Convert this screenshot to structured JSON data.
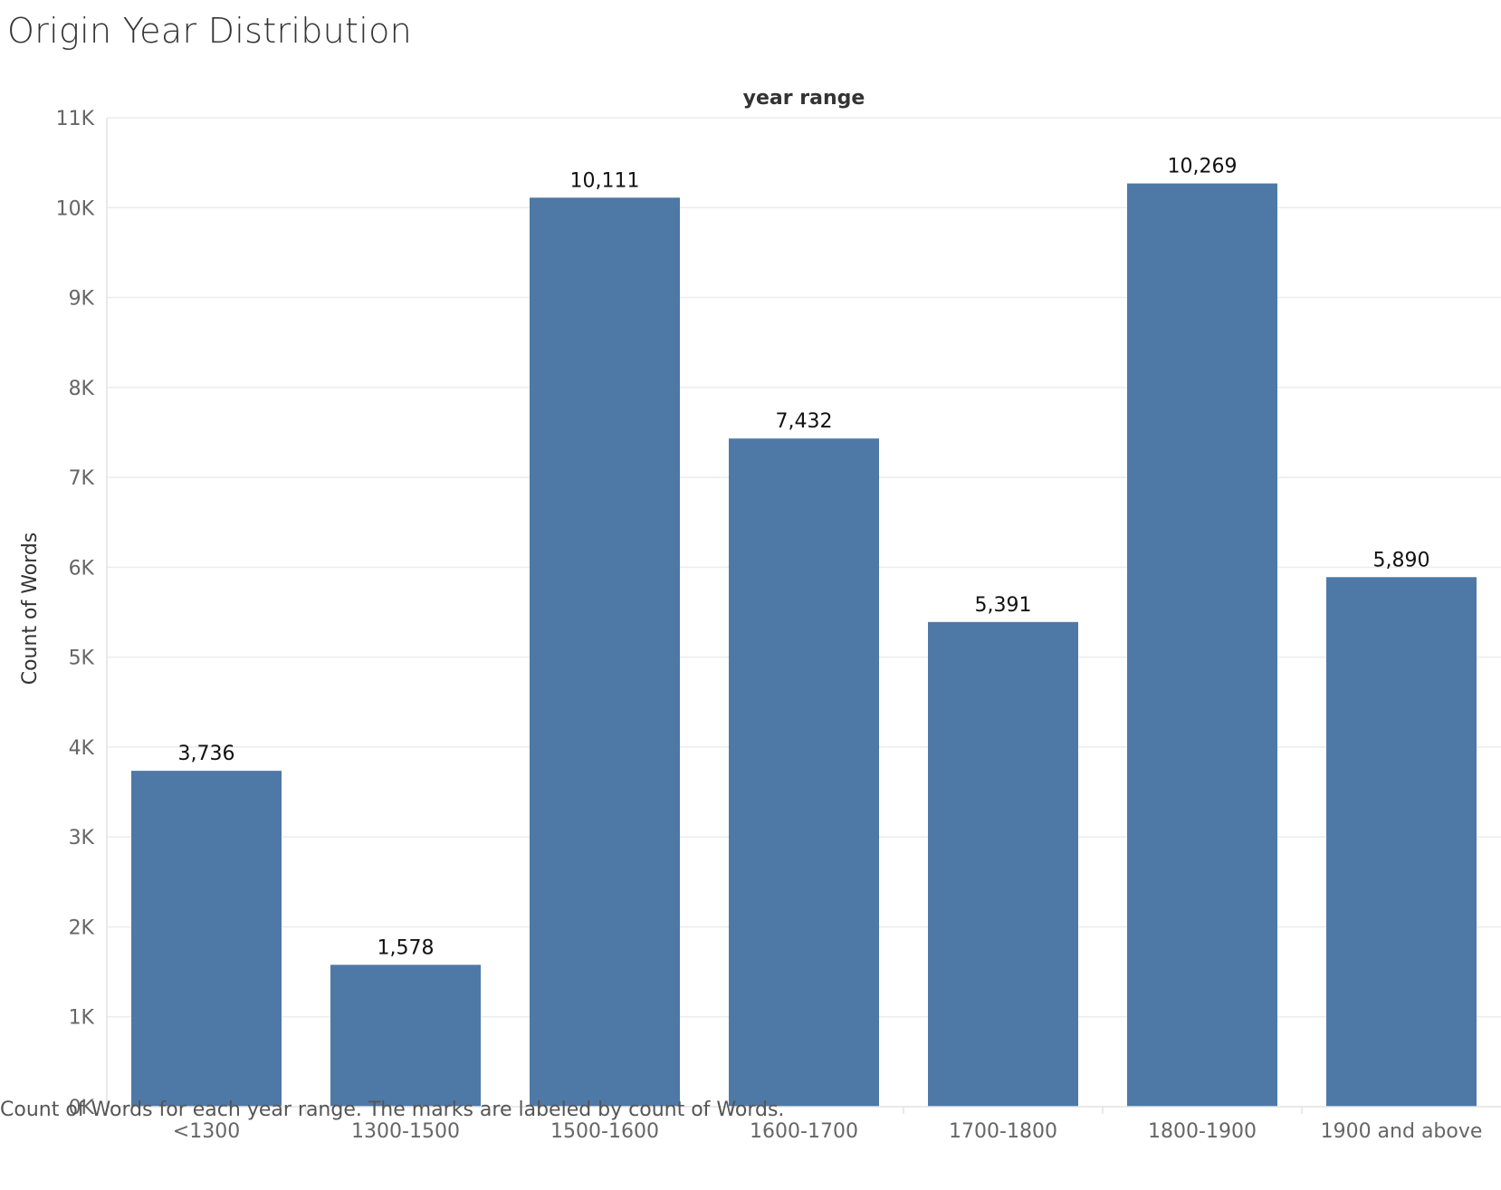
{
  "chart_data": {
    "type": "bar",
    "title": "Origin Year Distribution",
    "column_header": "year range",
    "xlabel": "",
    "ylabel": "Count of Words",
    "categories": [
      "<1300",
      "1300-1500",
      "1500-1600",
      "1600-1700",
      "1700-1800",
      "1800-1900",
      "1900 and above"
    ],
    "values": [
      3736,
      1578,
      10111,
      7432,
      5391,
      10269,
      5890
    ],
    "value_labels": [
      "3,736",
      "1,578",
      "10,111",
      "7,432",
      "5,391",
      "10,269",
      "5,890"
    ],
    "ylim": [
      0,
      11000
    ],
    "yticks": [
      0,
      1000,
      2000,
      3000,
      4000,
      5000,
      6000,
      7000,
      8000,
      9000,
      10000,
      11000
    ],
    "ytick_labels": [
      "0K",
      "1K",
      "2K",
      "3K",
      "4K",
      "5K",
      "6K",
      "7K",
      "8K",
      "9K",
      "10K",
      "11K"
    ],
    "grid": true,
    "bar_color": "#4e79a7",
    "caption": "Count of Words for each year range.  The marks are labeled by count of Words."
  }
}
